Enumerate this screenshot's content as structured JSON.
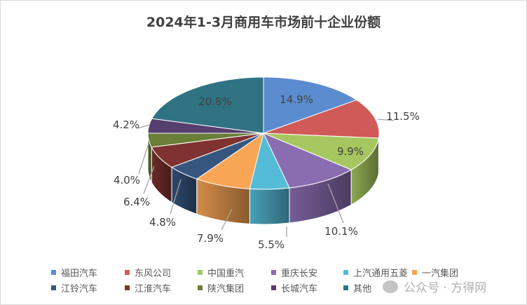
{
  "chart_data": {
    "type": "pie",
    "style": "3d",
    "title": "2024年1-3月商用车市场前十企业份额",
    "categories": [
      "福田汽车",
      "东风公司",
      "中国重汽",
      "重庆长安",
      "上汽通用五菱",
      "一汽集团",
      "江铃汽车",
      "江淮汽车",
      "陕汽集团",
      "长城汽车",
      "其他"
    ],
    "values": [
      14.9,
      11.5,
      9.9,
      10.1,
      5.5,
      7.9,
      4.8,
      6.4,
      4.0,
      4.2,
      20.8
    ],
    "labels": [
      "14.9%",
      "11.5%",
      "9.9%",
      "10.1%",
      "5.5%",
      "7.9%",
      "4.8%",
      "6.4%",
      "4.0%",
      "4.2%",
      "20.8%"
    ],
    "colors": [
      "#5b8ccf",
      "#d05a57",
      "#a6c75f",
      "#8a6db0",
      "#55bcd8",
      "#f8a555",
      "#36567f",
      "#7f3230",
      "#6a7f38",
      "#553f6e",
      "#2f7383"
    ],
    "legend_position": "bottom"
  },
  "watermark": "公众号 · 方得网"
}
